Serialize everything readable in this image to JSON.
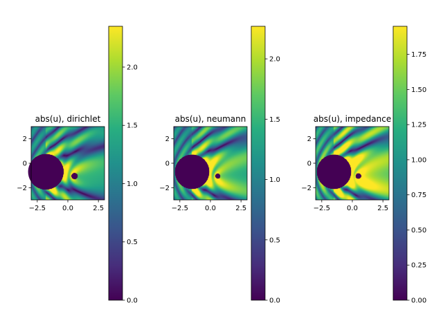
{
  "colors": {
    "background": "#ffffff",
    "axis": "#000000",
    "colormap": "viridis"
  },
  "chart_data": [
    {
      "type": "heatmap",
      "title": "abs(u), dirichlet",
      "xlim": [
        -3,
        3
      ],
      "ylim": [
        -3,
        3
      ],
      "xticks": [
        -2.5,
        0.0,
        2.5
      ],
      "xtick_labels": [
        "−2.5",
        "0.0",
        "2.5"
      ],
      "yticks": [
        2,
        0,
        -2
      ],
      "ytick_labels": [
        "2",
        "0",
        "−2"
      ],
      "scatterers": [
        {
          "center": [
            -1.8,
            -0.7
          ],
          "radius": 1.45
        },
        {
          "center": [
            0.55,
            -1.05
          ],
          "radius": 0.25
        }
      ],
      "incident_direction": "right",
      "colorbar": {
        "range": [
          0.0,
          2.35
        ],
        "ticks": [
          0.0,
          0.5,
          1.0,
          1.5,
          2.0
        ],
        "tick_labels": [
          "0.0",
          "0.5",
          "1.0",
          "1.5",
          "2.0"
        ]
      }
    },
    {
      "type": "heatmap",
      "title": "abs(u), neumann",
      "xlim": [
        -3,
        3
      ],
      "ylim": [
        -3,
        3
      ],
      "xticks": [
        -2.5,
        0.0,
        2.5
      ],
      "xtick_labels": [
        "−2.5",
        "0.0",
        "2.5"
      ],
      "yticks": [
        2,
        0,
        -2
      ],
      "ytick_labels": [
        "2",
        "0",
        "−2"
      ],
      "scatterers": [
        {
          "center": [
            -1.5,
            -0.7
          ],
          "radius": 1.4
        },
        {
          "center": [
            0.6,
            -1.05
          ],
          "radius": 0.2
        }
      ],
      "incident_direction": "right",
      "colorbar": {
        "range": [
          0.0,
          2.27
        ],
        "ticks": [
          0.0,
          0.5,
          1.0,
          1.5,
          2.0
        ],
        "tick_labels": [
          "0.0",
          "0.5",
          "1.0",
          "1.5",
          "2.0"
        ]
      }
    },
    {
      "type": "heatmap",
      "title": "abs(u), impedance",
      "xlim": [
        -3,
        3
      ],
      "ylim": [
        -3,
        3
      ],
      "xticks": [
        -2.5,
        0.0,
        2.5
      ],
      "xtick_labels": [
        "−2.5",
        "0.0",
        "2.5"
      ],
      "yticks": [
        2,
        0,
        -2
      ],
      "ytick_labels": [
        "2",
        "0",
        "−2"
      ],
      "scatterers": [
        {
          "center": [
            -1.5,
            -0.7
          ],
          "radius": 1.4
        },
        {
          "center": [
            0.5,
            -1.05
          ],
          "radius": 0.22
        }
      ],
      "incident_direction": "right",
      "colorbar": {
        "range": [
          0.0,
          1.95
        ],
        "ticks": [
          0.0,
          0.25,
          0.5,
          0.75,
          1.0,
          1.25,
          1.5,
          1.75
        ],
        "tick_labels": [
          "0.00",
          "0.25",
          "0.50",
          "0.75",
          "1.00",
          "1.25",
          "1.50",
          "1.75"
        ]
      }
    }
  ]
}
